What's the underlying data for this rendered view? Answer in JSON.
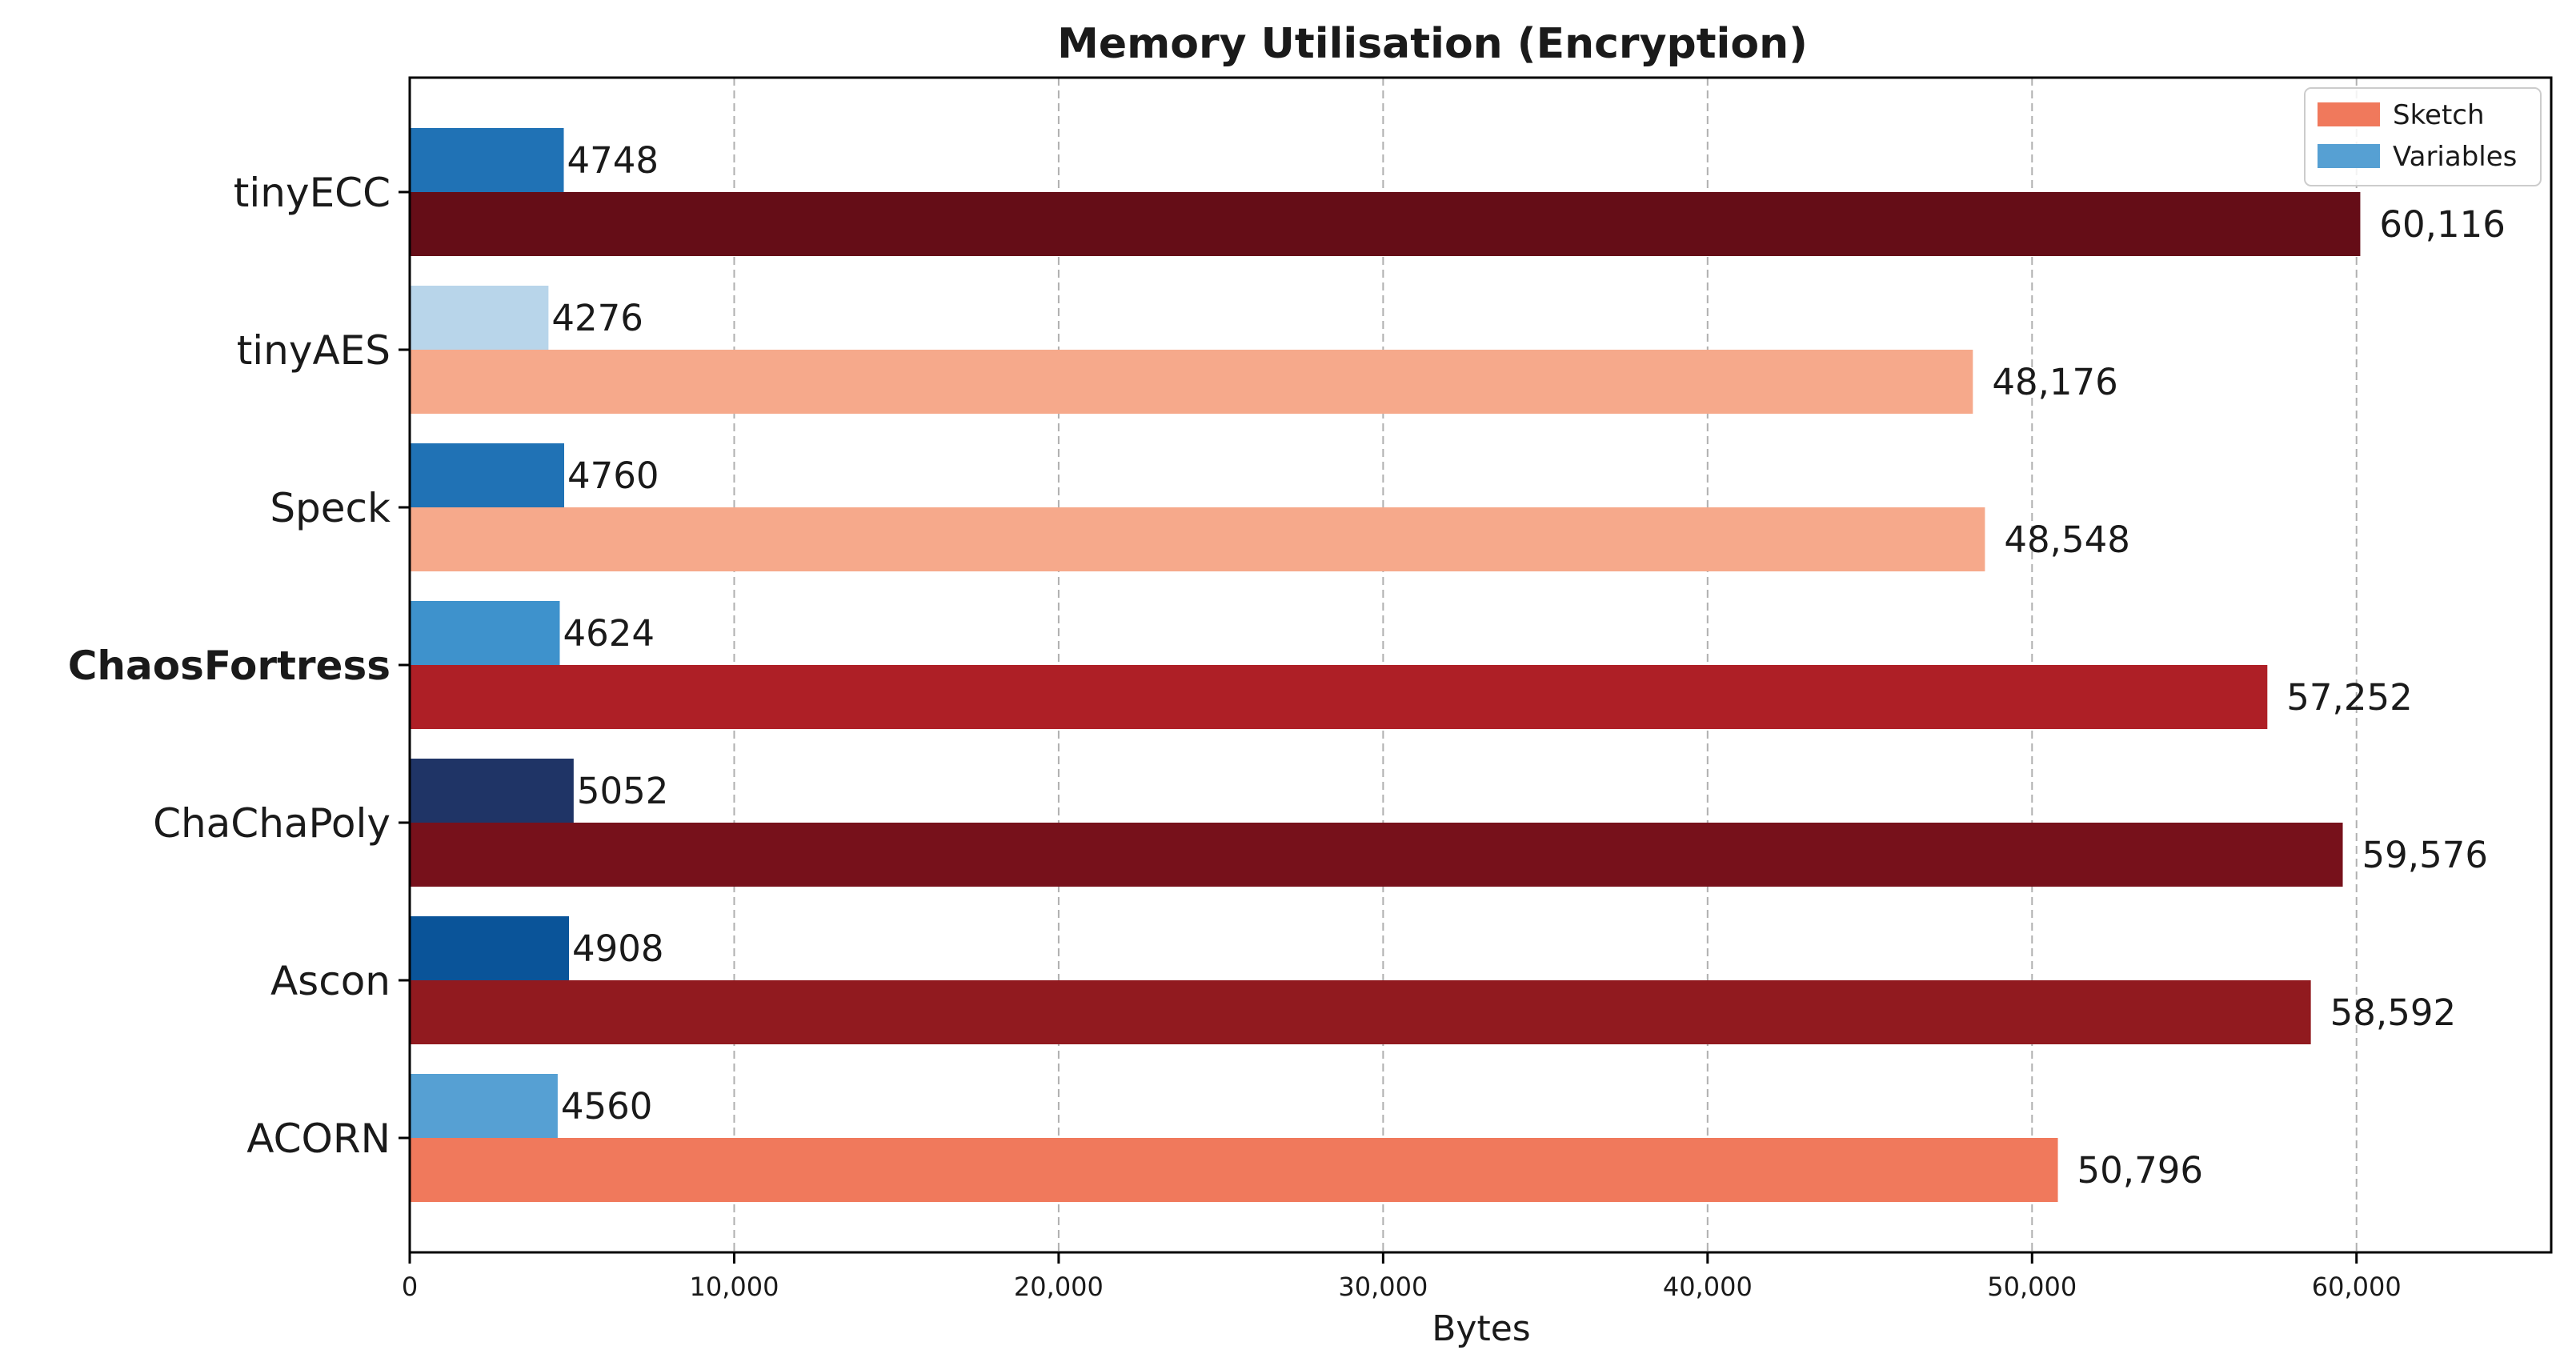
{
  "chart_data": {
    "type": "bar",
    "orientation": "horizontal",
    "title": "Memory Utilisation (Encryption)",
    "xlabel": "Bytes",
    "ylabel": "",
    "xlim": [
      0,
      66000
    ],
    "xticks": [
      0,
      10000,
      20000,
      30000,
      40000,
      50000,
      60000
    ],
    "xtick_labels": [
      "0",
      "10,000",
      "20,000",
      "30,000",
      "40,000",
      "50,000",
      "60,000"
    ],
    "grid": "vertical dashed",
    "legend_position": "top-right",
    "categories": [
      "tinyECC",
      "tinyAES",
      "Speck",
      "ChaosFortress",
      "ChaChaPoly",
      "Ascon",
      "ACORN"
    ],
    "bold_category": "ChaosFortress",
    "series": [
      {
        "name": "Sketch",
        "legend_color": "#f0795c",
        "values": [
          60116,
          48176,
          48548,
          57252,
          59576,
          58592,
          50796
        ],
        "value_labels": [
          "60,116",
          "48,176",
          "48,548",
          "57,252",
          "59,576",
          "58,592",
          "50,796"
        ],
        "colors": [
          "#650d17",
          "#f6a98b",
          "#f6a98b",
          "#ae1f26",
          "#77111b",
          "#911a1f",
          "#f0795c"
        ]
      },
      {
        "name": "Variables",
        "legend_color": "#56a0d3",
        "values": [
          4748,
          4276,
          4760,
          4624,
          5052,
          4908,
          4560
        ],
        "value_labels": [
          "4748",
          "4276",
          "4760",
          "4624",
          "5052",
          "4908",
          "4560"
        ],
        "colors": [
          "#2072b5",
          "#b8d5ea",
          "#2072b5",
          "#3e92cc",
          "#1f3466",
          "#0a5499",
          "#56a0d3"
        ]
      }
    ]
  }
}
